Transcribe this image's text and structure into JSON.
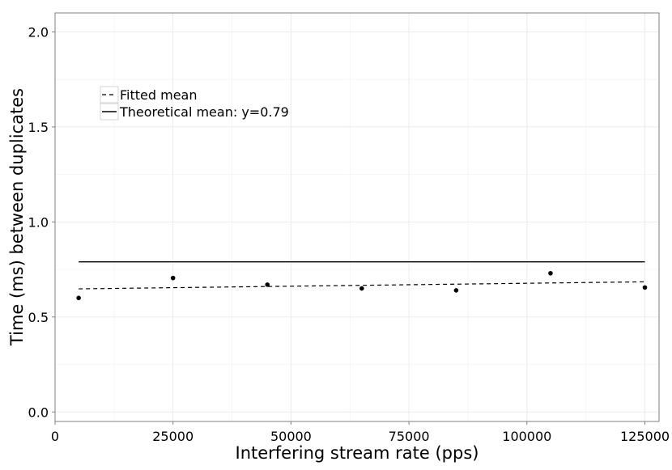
{
  "chart_data": {
    "type": "scatter",
    "title": "",
    "xlabel": "Interfering stream rate (pps)",
    "ylabel": "Time (ms) between duplicates",
    "xlim": [
      0,
      128000
    ],
    "ylim": [
      -0.05,
      2.1
    ],
    "x_ticks": [
      0,
      25000,
      50000,
      75000,
      100000,
      125000
    ],
    "x_tick_labels": [
      "0",
      "25000",
      "50000",
      "75000",
      "100000",
      "125000"
    ],
    "y_ticks": [
      0.0,
      0.5,
      1.0,
      1.5,
      2.0
    ],
    "y_tick_labels": [
      "0.0",
      "0.5",
      "1.0",
      "1.5",
      "2.0"
    ],
    "grid": true,
    "points": {
      "x": [
        5000,
        25000,
        45000,
        65000,
        85000,
        105000,
        125000
      ],
      "y": [
        0.6,
        0.705,
        0.67,
        0.65,
        0.64,
        0.73,
        0.655
      ]
    },
    "fitted_mean": {
      "name": "Fitted mean",
      "x": [
        5000,
        125000
      ],
      "y": [
        0.648,
        0.685
      ]
    },
    "theoretical_mean": {
      "name": "Theoretical mean: y=0.79",
      "x": [
        5000,
        125000
      ],
      "y": [
        0.79,
        0.79
      ]
    },
    "legend": {
      "placement": "top-left",
      "entries": [
        "Fitted mean",
        "Theoretical mean: y=0.79"
      ]
    }
  }
}
